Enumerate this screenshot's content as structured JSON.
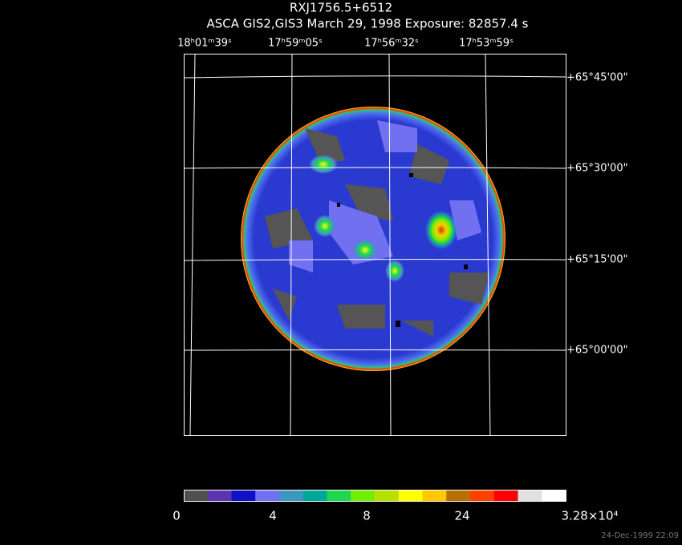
{
  "header": {
    "title": "RXJ1756.5+6512",
    "subtitle": "ASCA GIS2,GIS3 March 29, 1998 Exposure: 82857.4 s"
  },
  "ra_labels": [
    "18ʰ01ᵐ39ˢ",
    "17ʰ59ᵐ05ˢ",
    "17ʰ56ᵐ32ˢ",
    "17ʰ53ᵐ59ˢ"
  ],
  "dec_labels": [
    "+65°45'00\"",
    "+65°30'00\"",
    "+65°15'00\"",
    "+65°00'00\""
  ],
  "colorbar": {
    "labels": [
      "0",
      "4",
      "8",
      "24",
      "3.28×10⁴"
    ],
    "colors": [
      "#505050",
      "#5a35b0",
      "#1010c8",
      "#7070f0",
      "#3e97c0",
      "#00a898",
      "#20d850",
      "#70f000",
      "#b8e000",
      "#ffff00",
      "#ffc800",
      "#b87000",
      "#ff4000",
      "#ff0000",
      "#e0e0e0",
      "#ffffff"
    ]
  },
  "timestamp": "24-Dec-1999 22:09"
}
